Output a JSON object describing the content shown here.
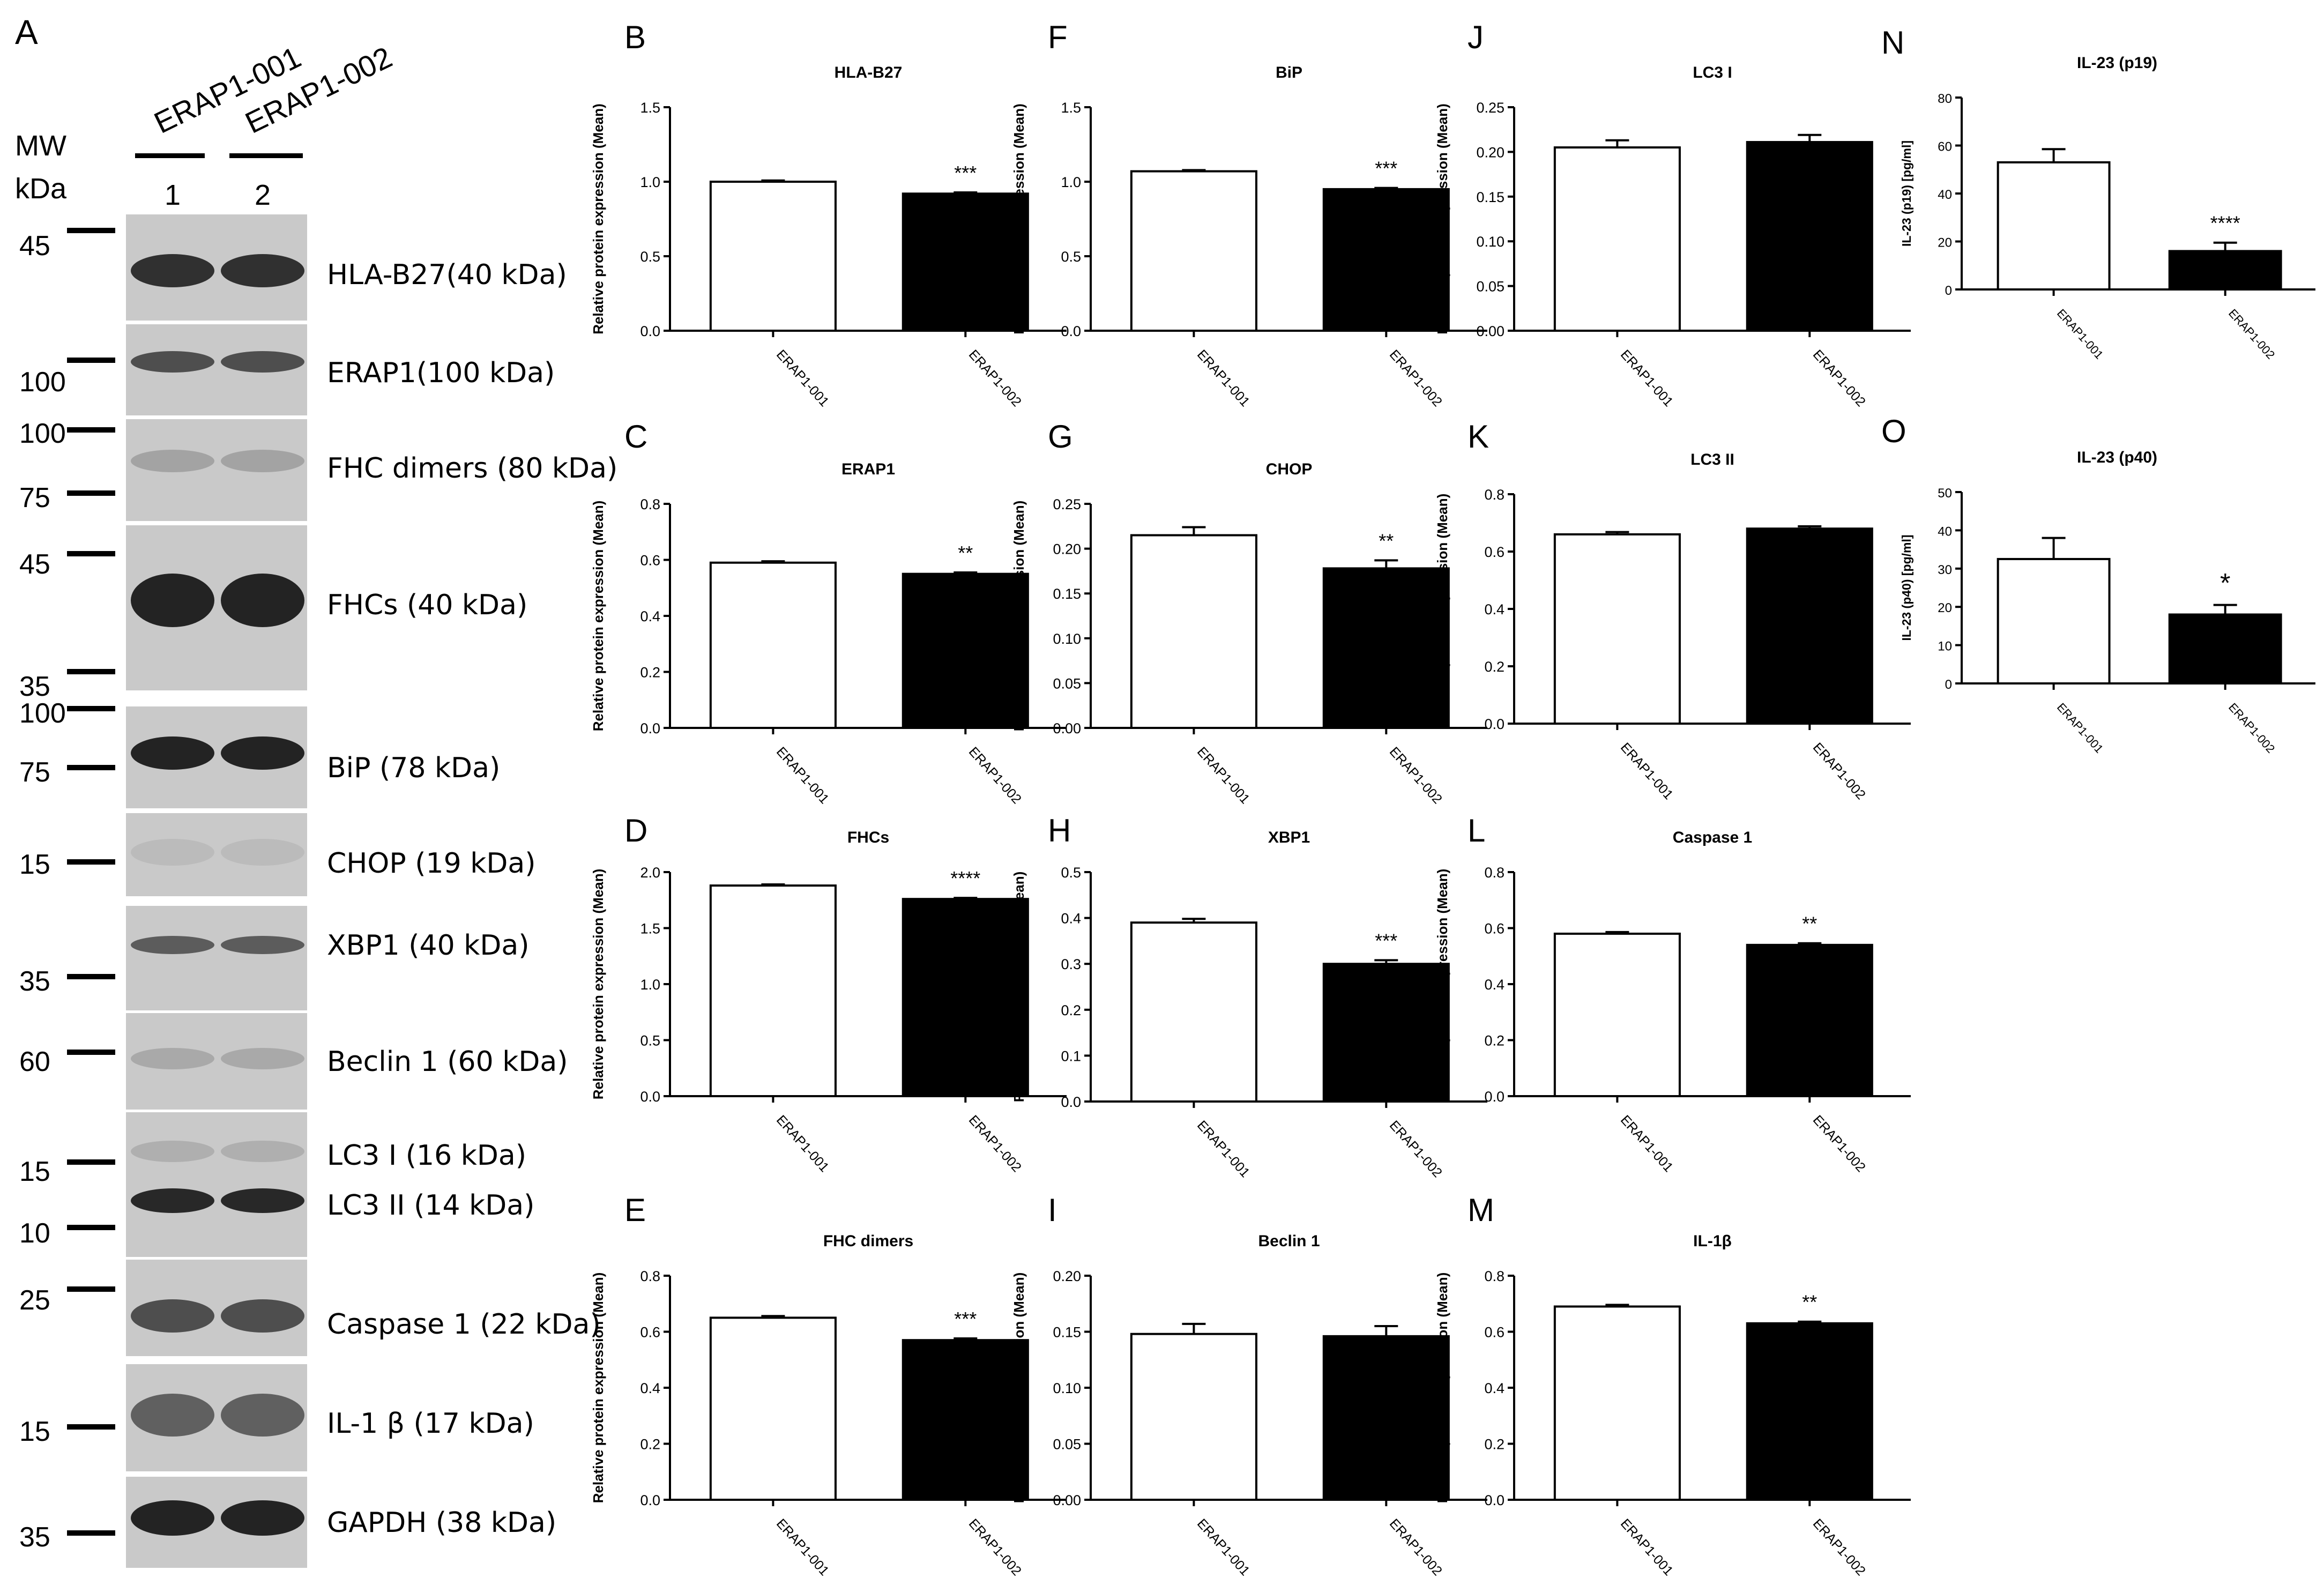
{
  "colors": {
    "wt_bar": "#ffffff",
    "mut_bar": "#000000",
    "axis": "#000000",
    "blot_bg": "#c9c9c9",
    "band": "#1a1a1a"
  },
  "blot": {
    "panel_letter": "A",
    "mw_label": "MW",
    "kda_label": "kDa",
    "lanes": [
      {
        "name": "ERAP1-001",
        "number": "1"
      },
      {
        "name": "ERAP1-002",
        "number": "2"
      }
    ],
    "markers": [
      "45",
      "100",
      "100",
      "75",
      "45",
      "35",
      "100",
      "75",
      "15",
      "35",
      "60",
      "15",
      "10",
      "25",
      "15",
      "35"
    ],
    "strips": [
      {
        "label": "HLA-B27(40 kDa)",
        "bands": [
          "HLA-B27 band lane 1",
          "HLA-B27 band lane 2"
        ]
      },
      {
        "label": "ERAP1(100 kDa)"
      },
      {
        "label": "FHC dimers (80 kDa)"
      },
      {
        "label": "FHCs (40 kDa)"
      },
      {
        "label": "BiP (78 kDa)"
      },
      {
        "label": "CHOP (19 kDa)"
      },
      {
        "label": "XBP1 (40 kDa)"
      },
      {
        "label": "Beclin 1 (60 kDa)"
      },
      {
        "label": "LC3 I (16 kDa)"
      },
      {
        "label": "LC3 II (14 kDa)"
      },
      {
        "label": "Caspase 1 (22 kDa)"
      },
      {
        "label": "IL-1 β (17 kDa)"
      },
      {
        "label": "GAPDH (38 kDa)"
      }
    ]
  },
  "chart_data": [
    {
      "panel": "B",
      "type": "bar",
      "title": "HLA-B27",
      "ylabel": "Relative protein expression (Mean)",
      "categories": [
        "ERAP1-001",
        "ERAP1-002"
      ],
      "values": [
        1.0,
        0.92
      ],
      "errors": [
        0.008,
        0.008
      ],
      "ylim": [
        0,
        1.5
      ],
      "ticks": [
        "0.0",
        "0.5",
        "1.0",
        "1.5"
      ],
      "significance": "***"
    },
    {
      "panel": "C",
      "type": "bar",
      "title": "ERAP1",
      "ylabel": "Relative protein expression (Mean)",
      "categories": [
        "ERAP1-001",
        "ERAP1-002"
      ],
      "values": [
        0.59,
        0.55
      ],
      "errors": [
        0.005,
        0.005
      ],
      "ylim": [
        0,
        0.8
      ],
      "ticks": [
        "0.0",
        "0.2",
        "0.4",
        "0.6",
        "0.8"
      ],
      "significance": "**"
    },
    {
      "panel": "D",
      "type": "bar",
      "title": "FHCs",
      "ylabel": "Relative protein expression (Mean)",
      "categories": [
        "ERAP1-001",
        "ERAP1-002"
      ],
      "values": [
        1.88,
        1.76
      ],
      "errors": [
        0.01,
        0.01
      ],
      "ylim": [
        0,
        2.0
      ],
      "ticks": [
        "0.0",
        "0.5",
        "1.0",
        "1.5",
        "2.0"
      ],
      "significance": "****"
    },
    {
      "panel": "E",
      "type": "bar",
      "title": "FHC dimers",
      "ylabel": "Relative protein expression (Mean)",
      "categories": [
        "ERAP1-001",
        "ERAP1-002"
      ],
      "values": [
        0.65,
        0.57
      ],
      "errors": [
        0.006,
        0.006
      ],
      "ylim": [
        0,
        0.8
      ],
      "ticks": [
        "0.0",
        "0.2",
        "0.4",
        "0.6",
        "0.8"
      ],
      "significance": "***"
    },
    {
      "panel": "F",
      "type": "bar",
      "title": "BiP",
      "ylabel": "Relative protein expression (Mean)",
      "categories": [
        "ERAP1-001",
        "ERAP1-002"
      ],
      "values": [
        1.07,
        0.95
      ],
      "errors": [
        0.008,
        0.008
      ],
      "ylim": [
        0,
        1.5
      ],
      "ticks": [
        "0.0",
        "0.5",
        "1.0",
        "1.5"
      ],
      "significance": "***"
    },
    {
      "panel": "G",
      "type": "bar",
      "title": "CHOP",
      "ylabel": "Relative protein expression (Mean)",
      "categories": [
        "ERAP1-001",
        "ERAP1-002"
      ],
      "values": [
        0.215,
        0.178
      ],
      "errors": [
        0.009,
        0.009
      ],
      "ylim": [
        0,
        0.25
      ],
      "ticks": [
        "0.00",
        "0.05",
        "0.10",
        "0.15",
        "0.20",
        "0.25"
      ],
      "significance": "**"
    },
    {
      "panel": "H",
      "type": "bar",
      "title": "XBP1",
      "ylabel": "Relative protein expression (Mean)",
      "categories": [
        "ERAP1-001",
        "ERAP1-002"
      ],
      "values": [
        0.39,
        0.3
      ],
      "errors": [
        0.008,
        0.008
      ],
      "ylim": [
        0,
        0.5
      ],
      "ticks": [
        "0.0",
        "0.1",
        "0.2",
        "0.3",
        "0.4",
        "0.5"
      ],
      "significance": "***"
    },
    {
      "panel": "I",
      "type": "bar",
      "title": "Beclin 1",
      "ylabel": "Relative protein expression (Mean)",
      "categories": [
        "ERAP1-001",
        "ERAP1-002"
      ],
      "values": [
        0.148,
        0.146
      ],
      "errors": [
        0.009,
        0.009
      ],
      "ylim": [
        0,
        0.2
      ],
      "ticks": [
        "0.00",
        "0.05",
        "0.10",
        "0.15",
        "0.20"
      ],
      "significance": ""
    },
    {
      "panel": "J",
      "type": "bar",
      "title": "LC3 I",
      "ylabel": "Relative protein expression (Mean)",
      "categories": [
        "ERAP1-001",
        "ERAP1-002"
      ],
      "values": [
        0.205,
        0.211
      ],
      "errors": [
        0.008,
        0.008
      ],
      "ylim": [
        0,
        0.25
      ],
      "ticks": [
        "0.00",
        "0.05",
        "0.10",
        "0.15",
        "0.20",
        "0.25"
      ],
      "significance": ""
    },
    {
      "panel": "K",
      "type": "bar",
      "title": "LC3 II",
      "ylabel": "Relative protein expression (Mean)",
      "categories": [
        "ERAP1-001",
        "ERAP1-002"
      ],
      "values": [
        0.66,
        0.68
      ],
      "errors": [
        0.008,
        0.008
      ],
      "ylim": [
        0,
        0.8
      ],
      "ticks": [
        "0.0",
        "0.2",
        "0.4",
        "0.6",
        "0.8"
      ],
      "significance": ""
    },
    {
      "panel": "L",
      "type": "bar",
      "title": "Caspase 1",
      "ylabel": "Relative protein expression (Mean)",
      "categories": [
        "ERAP1-001",
        "ERAP1-002"
      ],
      "values": [
        0.58,
        0.54
      ],
      "errors": [
        0.006,
        0.006
      ],
      "ylim": [
        0,
        0.8
      ],
      "ticks": [
        "0.0",
        "0.2",
        "0.4",
        "0.6",
        "0.8"
      ],
      "significance": "**"
    },
    {
      "panel": "M",
      "type": "bar",
      "title": "IL-1β",
      "ylabel": "Relative protein expression (Mean)",
      "categories": [
        "ERAP1-001",
        "ERAP1-002"
      ],
      "values": [
        0.69,
        0.63
      ],
      "errors": [
        0.006,
        0.006
      ],
      "ylim": [
        0,
        0.8
      ],
      "ticks": [
        "0.0",
        "0.2",
        "0.4",
        "0.6",
        "0.8"
      ],
      "significance": "**"
    },
    {
      "panel": "N",
      "type": "bar",
      "title": "IL-23 (p19)",
      "ylabel": "IL-23 (p19) [pg/ml]",
      "categories": [
        "ERAP1-001",
        "ERAP1-002"
      ],
      "values": [
        53,
        16
      ],
      "errors": [
        5.5,
        3.5
      ],
      "ylim": [
        0,
        80
      ],
      "ticks": [
        "0",
        "20",
        "40",
        "60",
        "80"
      ],
      "significance": "****"
    },
    {
      "panel": "O",
      "type": "bar",
      "title": "IL-23 (p40)",
      "ylabel": "IL-23 (p40) [pg/ml]",
      "categories": [
        "ERAP1-001",
        "ERAP1-002"
      ],
      "values": [
        32.5,
        18
      ],
      "errors": [
        5.5,
        2.5
      ],
      "ylim": [
        0,
        50
      ],
      "ticks": [
        "0",
        "10",
        "20",
        "30",
        "40",
        "50"
      ],
      "significance": "*"
    }
  ]
}
